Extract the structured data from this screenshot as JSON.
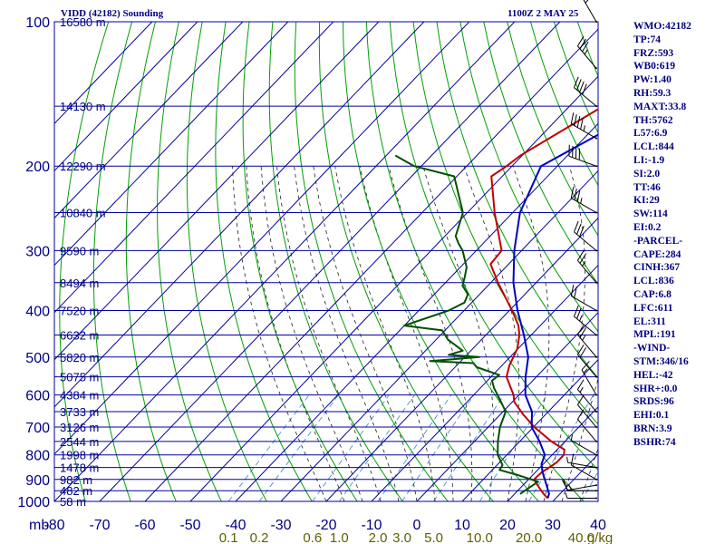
{
  "header": {
    "station_title": "VIDD (42182) Sounding",
    "time_title": "1100Z  2 MAY 25"
  },
  "indices": [
    "WMO:42182",
    "TP:74",
    "FRZ:593",
    "WB0:619",
    "PW:1.40",
    "RH:59.3",
    "MAXT:33.8",
    "TH:5762",
    "L57:6.9",
    "LCL:844",
    "LI:-1.9",
    "SI:2.0",
    "TT:46",
    "KI:29",
    "SW:114",
    "EI:0.2",
    "-PARCEL-",
    "CAPE:284",
    "CINH:367",
    "LCL:836",
    "CAP:6.8",
    "LFC:611",
    "EL:311",
    "MPL:191",
    "-WIND-",
    "STM:346/16",
    "HEL:-42",
    "SHR+:0.0",
    "SRDS:96",
    "EHI:0.1",
    "BRN:3.9",
    "BSHR:74"
  ],
  "chart_data": {
    "type": "line",
    "title": "VIDD (42182) Sounding",
    "subtitle": "1100Z  2 MAY 25",
    "xlabel": "",
    "ylabel": "mb",
    "pressure_unit_label": "mb",
    "mixing_ratio_unit_label": "g/kg",
    "xlim": [
      -80,
      40
    ],
    "ylim": [
      1000,
      100
    ],
    "log_pressure_axis": true,
    "pressure_ticks": [
      100,
      200,
      300,
      400,
      500,
      600,
      700,
      800,
      900,
      1000
    ],
    "temperature_ticks": [
      -80,
      -70,
      -60,
      -50,
      -40,
      -30,
      -20,
      -10,
      0,
      10,
      20,
      30,
      40
    ],
    "mixing_ratio_labels": [
      {
        "text": "0.1",
        "value": 0.1
      },
      {
        "text": "0.2",
        "value": 0.2
      },
      {
        "text": "0.6",
        "value": 0.6
      },
      {
        "text": "1.0",
        "value": 1.0
      },
      {
        "text": "2.0",
        "value": 2.0
      },
      {
        "text": "3.0",
        "value": 3.0
      },
      {
        "text": "5.0",
        "value": 5.0
      },
      {
        "text": "10.0",
        "value": 10.0
      },
      {
        "text": "20.0",
        "value": 20.0
      },
      {
        "text": "40.0",
        "value": 40.0
      }
    ],
    "height_labels": [
      {
        "p": 100,
        "text": "16580 m"
      },
      {
        "p": 150,
        "text": "14130 m"
      },
      {
        "p": 200,
        "text": "12290 m"
      },
      {
        "p": 250,
        "text": "10840 m"
      },
      {
        "p": 300,
        "text": "9590 m"
      },
      {
        "p": 350,
        "text": "8494 m"
      },
      {
        "p": 400,
        "text": "7520 m"
      },
      {
        "p": 450,
        "text": "6632 m"
      },
      {
        "p": 500,
        "text": "5820 m"
      },
      {
        "p": 550,
        "text": "5075 m"
      },
      {
        "p": 600,
        "text": "4384 m"
      },
      {
        "p": 650,
        "text": "3733 m"
      },
      {
        "p": 700,
        "text": "3126 m"
      },
      {
        "p": 750,
        "text": "2544 m"
      },
      {
        "p": 800,
        "text": "1998 m"
      },
      {
        "p": 850,
        "text": "1478 m"
      },
      {
        "p": 900,
        "text": "982 m"
      },
      {
        "p": 950,
        "text": "482 m"
      },
      {
        "p": 1000,
        "text": "58 m"
      }
    ],
    "grid": true,
    "colors": {
      "isobars": "#0000a0",
      "isotherms": "#0000a0",
      "dry_adiabats": "#00a000",
      "moist_adiabats": "#202020",
      "mixing_ratio": "#4a90d0",
      "temperature": "#c00000",
      "dewpoint": "#005000",
      "parcel": "#0000c0",
      "labels": "#000080",
      "mixing_labels": "#606000",
      "wind": "#000000"
    },
    "series": [
      {
        "key": "temperature",
        "points": [
          [
            -28.2,
            100
          ],
          [
            -42.6,
            150
          ],
          [
            -50.4,
            190
          ],
          [
            -51.2,
            200
          ],
          [
            -52.4,
            210
          ],
          [
            -44.0,
            250
          ],
          [
            -34.4,
            300
          ],
          [
            -34.0,
            320
          ],
          [
            -28.4,
            350
          ],
          [
            -19.4,
            400
          ],
          [
            -14.8,
            430
          ],
          [
            -12.6,
            450
          ],
          [
            -10.2,
            480
          ],
          [
            -8.4,
            520
          ],
          [
            -6.6,
            550
          ],
          [
            -1.2,
            600
          ],
          [
            0.4,
            620
          ],
          [
            5.2,
            660
          ],
          [
            10.2,
            700
          ],
          [
            17.0,
            750
          ],
          [
            21.6,
            780
          ],
          [
            22.6,
            800
          ],
          [
            22.6,
            830
          ],
          [
            21.4,
            870
          ],
          [
            21.2,
            900
          ],
          [
            24.0,
            935
          ],
          [
            26.4,
            965
          ],
          [
            28.2,
            985
          ]
        ]
      },
      {
        "key": "dewpoint",
        "points": [
          [
            -78.0,
            190
          ],
          [
            -71.6,
            200
          ],
          [
            -60.6,
            210
          ],
          [
            -51.0,
            250
          ],
          [
            -47.6,
            280
          ],
          [
            -45.4,
            290
          ],
          [
            -43.0,
            300
          ],
          [
            -41.2,
            310
          ],
          [
            -38.6,
            325
          ],
          [
            -37.0,
            340
          ],
          [
            -35.6,
            355
          ],
          [
            -32.6,
            370
          ],
          [
            -31.6,
            385
          ],
          [
            -33.4,
            400
          ],
          [
            -40.0,
            430
          ],
          [
            -30.6,
            440
          ],
          [
            -29.0,
            450
          ],
          [
            -27.4,
            460
          ],
          [
            -21.8,
            485
          ],
          [
            -24.0,
            495
          ],
          [
            -16.8,
            500
          ],
          [
            -26.8,
            510
          ],
          [
            -16.8,
            515
          ],
          [
            -15.2,
            525
          ],
          [
            -8.6,
            545
          ],
          [
            -9.0,
            560
          ],
          [
            -7.0,
            580
          ],
          [
            -3.6,
            610
          ],
          [
            0.6,
            650
          ],
          [
            2.6,
            700
          ],
          [
            5.2,
            750
          ],
          [
            8.0,
            800
          ],
          [
            11.2,
            840
          ],
          [
            11.6,
            860
          ],
          [
            16.4,
            880
          ],
          [
            22.6,
            910
          ],
          [
            21.8,
            940
          ],
          [
            21.2,
            965
          ]
        ]
      },
      {
        "key": "parcel",
        "points": [
          [
            -32.2,
            150
          ],
          [
            -43.6,
            200
          ],
          [
            -38.4,
            250
          ],
          [
            -31.6,
            300
          ],
          [
            -25.0,
            350
          ],
          [
            -18.2,
            400
          ],
          [
            -11.6,
            450
          ],
          [
            -6.0,
            500
          ],
          [
            -2.4,
            550
          ],
          [
            1.4,
            600
          ],
          [
            6.4,
            650
          ],
          [
            9.6,
            700
          ],
          [
            14.4,
            750
          ],
          [
            18.4,
            800
          ],
          [
            19.6,
            836
          ],
          [
            21.6,
            870
          ],
          [
            23.6,
            900
          ],
          [
            25.8,
            935
          ],
          [
            27.6,
            965
          ],
          [
            28.2,
            985
          ]
        ]
      }
    ],
    "wind_barbs": [
      {
        "p": 100,
        "dir": 330,
        "spd": 25
      },
      {
        "p": 125,
        "dir": 320,
        "spd": 35
      },
      {
        "p": 150,
        "dir": 310,
        "spd": 40
      },
      {
        "p": 175,
        "dir": 300,
        "spd": 45
      },
      {
        "p": 200,
        "dir": 290,
        "spd": 40
      },
      {
        "p": 250,
        "dir": 300,
        "spd": 35
      },
      {
        "p": 300,
        "dir": 310,
        "spd": 30
      },
      {
        "p": 350,
        "dir": 320,
        "spd": 25
      },
      {
        "p": 400,
        "dir": 300,
        "spd": 20
      },
      {
        "p": 450,
        "dir": 310,
        "spd": 25
      },
      {
        "p": 500,
        "dir": 320,
        "spd": 25
      },
      {
        "p": 550,
        "dir": 320,
        "spd": 20
      },
      {
        "p": 600,
        "dir": 330,
        "spd": 15
      },
      {
        "p": 650,
        "dir": 320,
        "spd": 15
      },
      {
        "p": 700,
        "dir": 320,
        "spd": 10
      },
      {
        "p": 750,
        "dir": 320,
        "spd": 10
      },
      {
        "p": 800,
        "dir": 300,
        "spd": 5
      },
      {
        "p": 850,
        "dir": 280,
        "spd": 5
      },
      {
        "p": 900,
        "dir": 300,
        "spd": 10
      },
      {
        "p": 925,
        "dir": 260,
        "spd": 15
      },
      {
        "p": 950,
        "dir": 270,
        "spd": 10
      },
      {
        "p": 985,
        "dir": 270,
        "spd": 5
      }
    ]
  }
}
